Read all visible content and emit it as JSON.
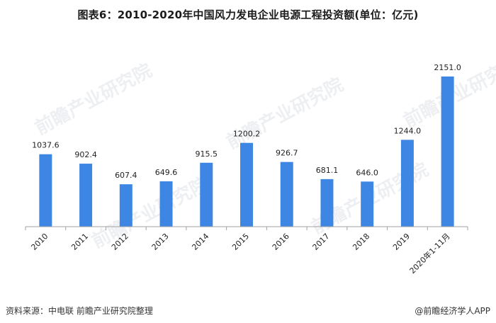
{
  "title": "图表6：2010-2020年中国风力发电企业电源工程投资额(单位：亿元)",
  "source": "资料来源：中电联 前瞻产业研究院整理",
  "brand": "@前瞻经济学人APP",
  "watermark_text": "前瞻产业研究院",
  "colors": {
    "bar": "#3d86e4",
    "axis": "#a0a0a0"
  },
  "chart_data": {
    "type": "bar",
    "title": "图表6：2010-2020年中国风力发电企业电源工程投资额(单位：亿元)",
    "xlabel": "",
    "ylabel": "",
    "categories": [
      "2010",
      "2011",
      "2012",
      "2013",
      "2014",
      "2015",
      "2016",
      "2017",
      "2018",
      "2019",
      "2020年1-11月"
    ],
    "values": [
      1037.6,
      902.4,
      607.4,
      649.6,
      915.5,
      1200.2,
      926.7,
      681.1,
      646.0,
      1244.0,
      2151.0
    ],
    "value_labels": [
      "1037.6",
      "902.4",
      "607.4",
      "649.6",
      "915.5",
      "1200.2",
      "926.7",
      "681.1",
      "646.0",
      "1244.0",
      "2151.0"
    ],
    "ylim": [
      0,
      2151
    ],
    "grid": false,
    "legend": "none"
  }
}
